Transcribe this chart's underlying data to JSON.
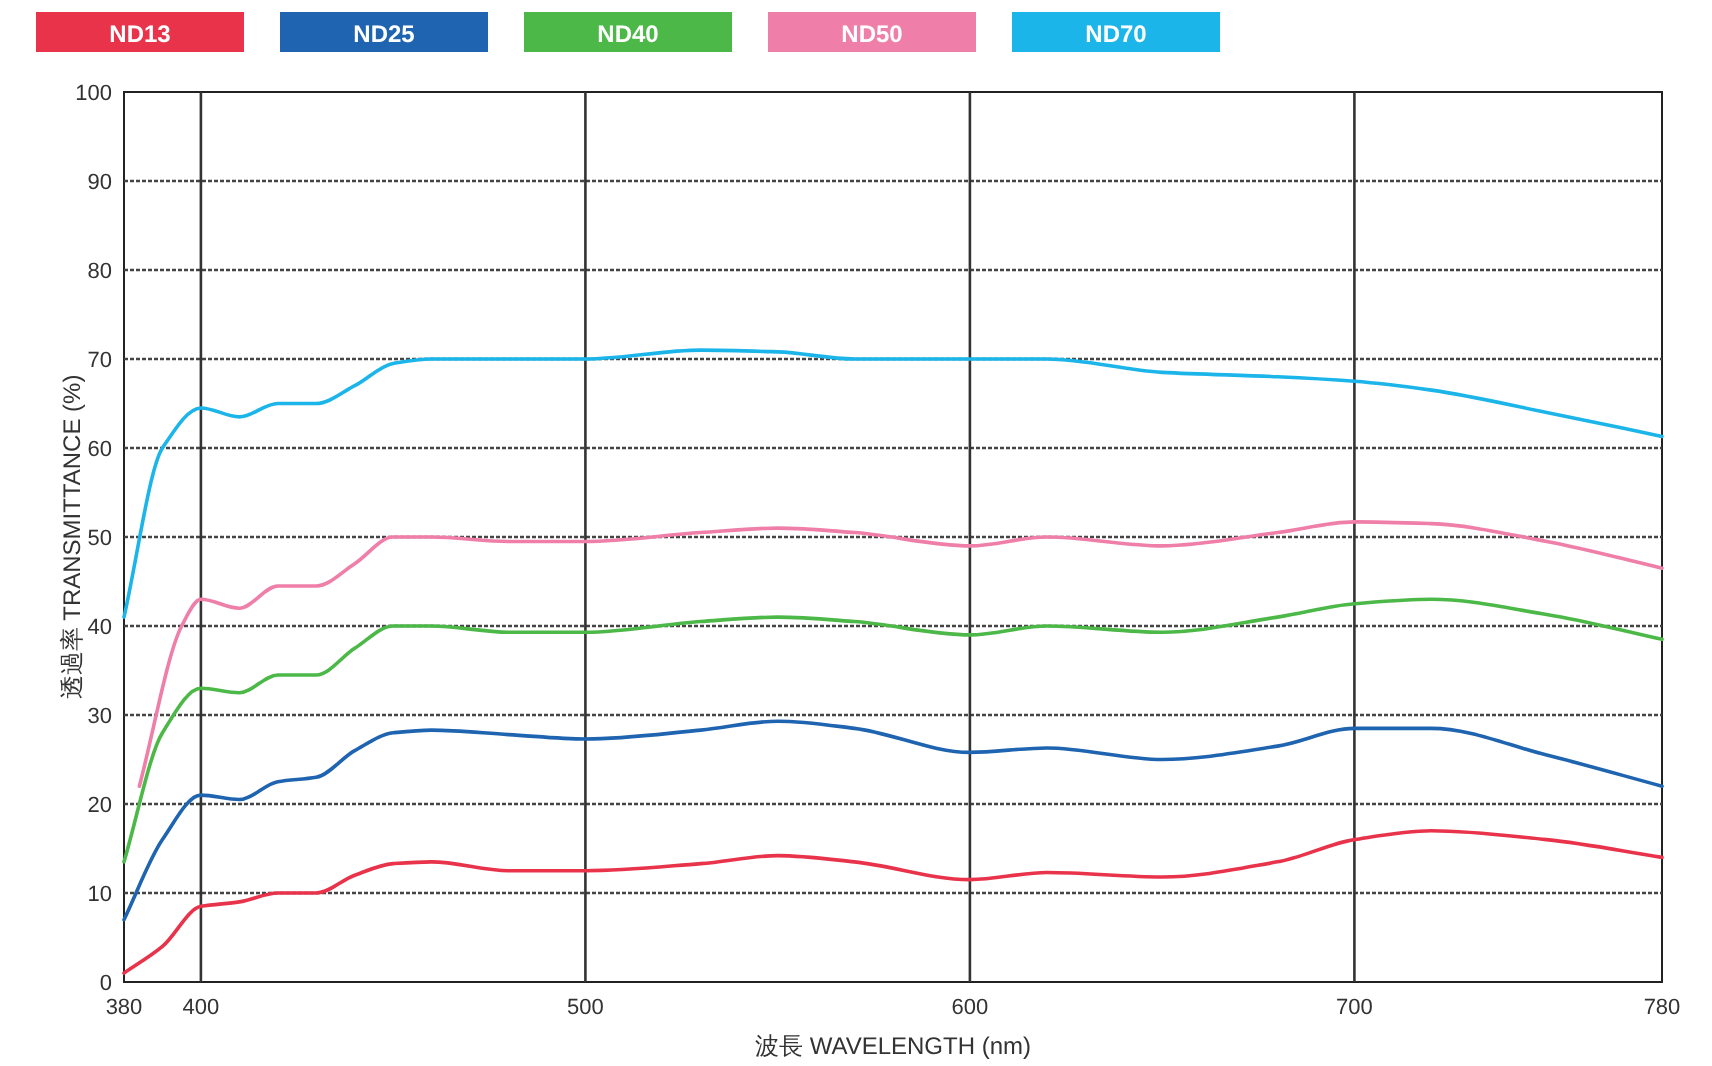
{
  "chart_data": {
    "type": "line",
    "xlabel": "波長  WAVELENGTH (nm)",
    "ylabel": "透過率 TRANSMITTANCE (%)",
    "x": [
      380,
      390,
      400,
      410,
      420,
      430,
      440,
      450,
      460,
      480,
      500,
      530,
      550,
      570,
      600,
      620,
      650,
      680,
      700,
      720,
      750,
      780
    ],
    "xlim": [
      380,
      780
    ],
    "xticks": [
      380,
      400,
      500,
      600,
      700,
      780
    ],
    "ylim": [
      0,
      100
    ],
    "yticks": [
      0,
      10,
      20,
      30,
      40,
      50,
      60,
      70,
      80,
      90,
      100
    ],
    "grid": true,
    "legend": "top left",
    "series": [
      {
        "name": "ND13",
        "color": "#e8334a",
        "values": [
          1,
          4,
          8.5,
          9,
          10,
          10,
          12,
          13.3,
          13.5,
          12.5,
          12.5,
          13.3,
          14.2,
          13.5,
          11.5,
          12.3,
          11.8,
          13.5,
          16,
          17,
          16,
          14
        ]
      },
      {
        "name": "ND25",
        "color": "#1f64b0",
        "values": [
          7,
          16,
          21,
          20.5,
          22.5,
          23,
          26,
          28,
          28.3,
          27.8,
          27.3,
          28.3,
          29.3,
          28.5,
          25.8,
          26.3,
          25,
          26.5,
          28.5,
          28.5,
          25.5,
          22
        ]
      },
      {
        "name": "ND40",
        "color": "#4cb848",
        "values": [
          13.5,
          28,
          33,
          32.5,
          34.5,
          34.5,
          37.5,
          40,
          40,
          39.3,
          39.3,
          40.5,
          41,
          40.5,
          39,
          40,
          39.3,
          41,
          42.5,
          43,
          41.3,
          38.5
        ]
      },
      {
        "name": "ND50",
        "color": "#ef7fa8",
        "x": [
          384,
          395,
          400,
          410,
          420,
          430,
          440,
          450,
          460,
          480,
          500,
          530,
          550,
          570,
          600,
          620,
          650,
          680,
          700,
          720,
          750,
          780
        ],
        "values": [
          22,
          40,
          43,
          42,
          44.5,
          44.5,
          47,
          50,
          50,
          49.5,
          49.5,
          50.5,
          51,
          50.5,
          49,
          50,
          49,
          50.5,
          51.7,
          51.5,
          49.5,
          46.5
        ]
      },
      {
        "name": "ND70",
        "color": "#1cb5ea",
        "values": [
          41,
          60,
          64.5,
          63.5,
          65,
          65,
          67,
          69.5,
          70,
          70,
          70,
          71,
          70.8,
          70,
          70,
          70,
          68.5,
          68,
          67.5,
          66.5,
          64,
          61.3
        ]
      }
    ]
  }
}
